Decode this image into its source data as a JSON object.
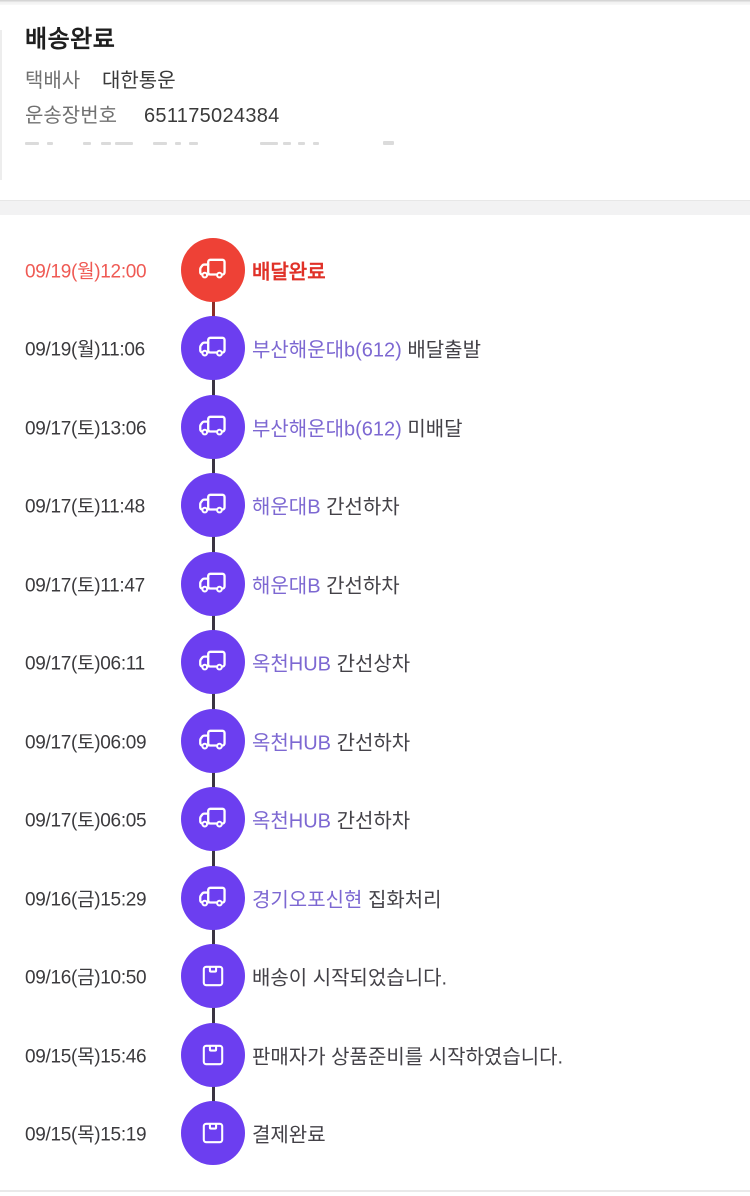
{
  "header": {
    "title": "배송완료",
    "courier_label": "택배사",
    "courier_value": "대한통운",
    "tracking_label": "운송장번호",
    "tracking_value": "651175024384"
  },
  "colors": {
    "accent_purple": "#6c3ef0",
    "accent_red": "#ee4136",
    "location_text_purple": "#7d68d2",
    "highlight_red_text": "#e03128",
    "connector_dark": "#3a3442",
    "connector_red": "#8d2d28",
    "divider_gray": "#f2f2f3"
  },
  "timeline": {
    "events": [
      {
        "date": "09/19(월)12:00",
        "location": "",
        "status": "배달완료",
        "icon": "truck-icon",
        "highlight": true
      },
      {
        "date": "09/19(월)11:06",
        "location": "부산해운대b(612)",
        "status": "배달출발",
        "icon": "truck-icon",
        "highlight": false
      },
      {
        "date": "09/17(토)13:06",
        "location": "부산해운대b(612)",
        "status": "미배달",
        "icon": "truck-icon",
        "highlight": false
      },
      {
        "date": "09/17(토)11:48",
        "location": "해운대B",
        "status": "간선하차",
        "icon": "truck-icon",
        "highlight": false
      },
      {
        "date": "09/17(토)11:47",
        "location": "해운대B",
        "status": "간선하차",
        "icon": "truck-icon",
        "highlight": false
      },
      {
        "date": "09/17(토)06:11",
        "location": "옥천HUB",
        "status": "간선상차",
        "icon": "truck-icon",
        "highlight": false
      },
      {
        "date": "09/17(토)06:09",
        "location": "옥천HUB",
        "status": "간선하차",
        "icon": "truck-icon",
        "highlight": false
      },
      {
        "date": "09/17(토)06:05",
        "location": "옥천HUB",
        "status": "간선하차",
        "icon": "truck-icon",
        "highlight": false
      },
      {
        "date": "09/16(금)15:29",
        "location": "경기오포신현",
        "status": "집화처리",
        "icon": "truck-icon",
        "highlight": false
      },
      {
        "date": "09/16(금)10:50",
        "location": "",
        "status": "배송이 시작되었습니다.",
        "icon": "package-icon",
        "highlight": false
      },
      {
        "date": "09/15(목)15:46",
        "location": "",
        "status": "판매자가 상품준비를 시작하였습니다.",
        "icon": "package-icon",
        "highlight": false
      },
      {
        "date": "09/15(목)15:19",
        "location": "",
        "status": "결제완료",
        "icon": "package-icon",
        "highlight": false
      }
    ]
  }
}
